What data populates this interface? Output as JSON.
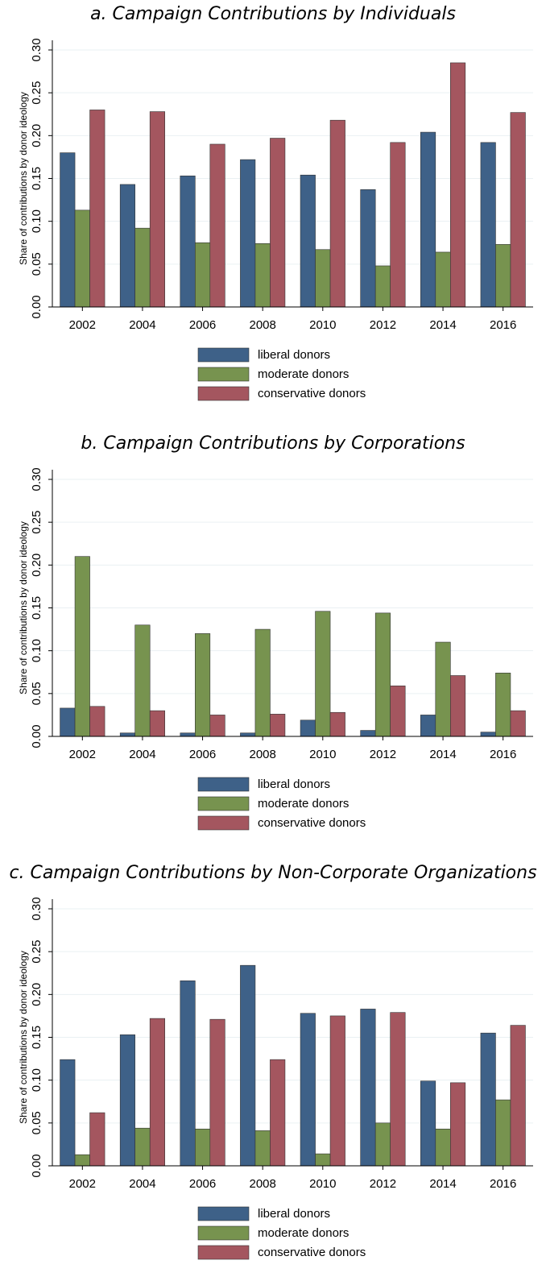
{
  "chart_data": [
    {
      "type": "bar",
      "title": "a. Campaign Contributions by Individuals",
      "ylabel": "Share of contributions by donor ideology",
      "categories": [
        "2002",
        "2004",
        "2006",
        "2008",
        "2010",
        "2012",
        "2014",
        "2016"
      ],
      "series": [
        {
          "name": "liberal donors",
          "color": "#3e6188",
          "values": [
            0.18,
            0.143,
            0.153,
            0.172,
            0.154,
            0.137,
            0.204,
            0.192
          ]
        },
        {
          "name": "moderate donors",
          "color": "#77934f",
          "values": [
            0.113,
            0.092,
            0.075,
            0.074,
            0.067,
            0.048,
            0.064,
            0.073
          ]
        },
        {
          "name": "conservative donors",
          "color": "#a4565f",
          "values": [
            0.23,
            0.228,
            0.19,
            0.197,
            0.218,
            0.192,
            0.285,
            0.227
          ]
        }
      ],
      "ylim": [
        0,
        0.3
      ],
      "yticks": [
        {
          "value": 0,
          "label": "0.00"
        },
        {
          "value": 0.05,
          "label": "0.05"
        },
        {
          "value": 0.1,
          "label": "0.10"
        },
        {
          "value": 0.15,
          "label": "0.15"
        },
        {
          "value": 0.2,
          "label": "0.20"
        },
        {
          "value": 0.25,
          "label": "0.25"
        },
        {
          "value": 0.3,
          "label": "0.30"
        }
      ],
      "grid": true
    },
    {
      "type": "bar",
      "title": "b. Campaign Contributions by Corporations",
      "ylabel": "Share of contributions by donor ideology",
      "categories": [
        "2002",
        "2004",
        "2006",
        "2008",
        "2010",
        "2012",
        "2014",
        "2016"
      ],
      "series": [
        {
          "name": "liberal donors",
          "color": "#3e6188",
          "values": [
            0.033,
            0.004,
            0.004,
            0.004,
            0.019,
            0.007,
            0.025,
            0.005
          ]
        },
        {
          "name": "moderate donors",
          "color": "#77934f",
          "values": [
            0.21,
            0.13,
            0.12,
            0.125,
            0.146,
            0.144,
            0.11,
            0.074
          ]
        },
        {
          "name": "conservative donors",
          "color": "#a4565f",
          "values": [
            0.035,
            0.03,
            0.025,
            0.026,
            0.028,
            0.059,
            0.071,
            0.03
          ]
        }
      ],
      "ylim": [
        0,
        0.3
      ],
      "yticks": [
        {
          "value": 0,
          "label": "0.00"
        },
        {
          "value": 0.05,
          "label": "0.05"
        },
        {
          "value": 0.1,
          "label": "0.10"
        },
        {
          "value": 0.15,
          "label": "0.15"
        },
        {
          "value": 0.2,
          "label": "0.20"
        },
        {
          "value": 0.25,
          "label": "0.25"
        },
        {
          "value": 0.3,
          "label": "0.30"
        }
      ],
      "grid": true
    },
    {
      "type": "bar",
      "title": "c. Campaign Contributions by Non-Corporate Organizations",
      "ylabel": "Share of contributions by donor ideology",
      "categories": [
        "2002",
        "2004",
        "2006",
        "2008",
        "2010",
        "2012",
        "2014",
        "2016"
      ],
      "series": [
        {
          "name": "liberal donors",
          "color": "#3e6188",
          "values": [
            0.124,
            0.153,
            0.216,
            0.234,
            0.178,
            0.183,
            0.099,
            0.155
          ]
        },
        {
          "name": "moderate donors",
          "color": "#77934f",
          "values": [
            0.013,
            0.044,
            0.043,
            0.041,
            0.014,
            0.05,
            0.043,
            0.077
          ]
        },
        {
          "name": "conservative donors",
          "color": "#a4565f",
          "values": [
            0.062,
            0.172,
            0.171,
            0.124,
            0.175,
            0.179,
            0.097,
            0.164
          ]
        }
      ],
      "ylim": [
        0,
        0.3
      ],
      "yticks": [
        {
          "value": 0,
          "label": "0.00"
        },
        {
          "value": 0.05,
          "label": "0.05"
        },
        {
          "value": 0.1,
          "label": "0.10"
        },
        {
          "value": 0.15,
          "label": "0.15"
        },
        {
          "value": 0.2,
          "label": "0.20"
        },
        {
          "value": 0.25,
          "label": "0.25"
        },
        {
          "value": 0.3,
          "label": "0.30"
        }
      ],
      "grid": true
    }
  ]
}
